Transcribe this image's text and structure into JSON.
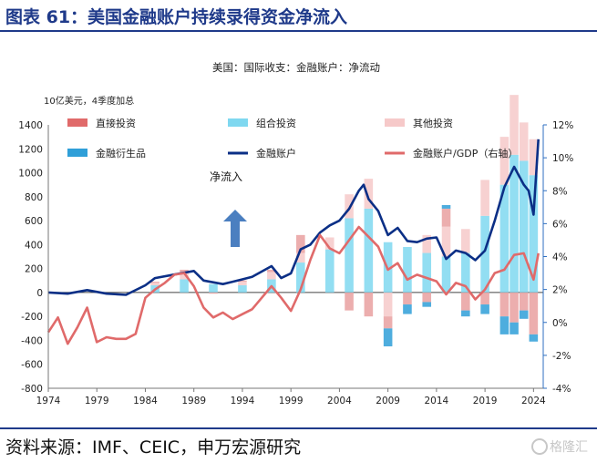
{
  "figure": {
    "title": "图表 61：美国金融账户持续录得资金净流入",
    "source": "资料来源：IMF、CEIC，申万宏源研究",
    "watermark": "格隆汇"
  },
  "chart_data": {
    "type": "bar",
    "title": "美国：国际收支：金融账户：净流动",
    "units_label": "10亿美元，4季度加总",
    "annotation": "净流入",
    "annotation_icon": "up-arrow-icon",
    "x_ticks": [
      "1974",
      "1979",
      "1984",
      "1989",
      "1994",
      "1999",
      "2004",
      "2009",
      "2014",
      "2019",
      "2024"
    ],
    "xlim": [
      1974,
      2025
    ],
    "ylim": [
      -800,
      1400
    ],
    "y2lim": [
      -4,
      12
    ],
    "y_ticks": [
      "-800",
      "-600",
      "-400",
      "-200",
      "0",
      "200",
      "400",
      "600",
      "800",
      "1000",
      "1200",
      "1400"
    ],
    "y2_ticks": [
      "-4%",
      "-2%",
      "0%",
      "2%",
      "4%",
      "6%",
      "8%",
      "10%",
      "12%"
    ],
    "legend": [
      {
        "label": "直接投资",
        "color": "#e06a6a",
        "kind": "rect"
      },
      {
        "label": "组合投资",
        "color": "#7fd8f0",
        "kind": "rect"
      },
      {
        "label": "其他投资",
        "color": "#f6c9c9",
        "kind": "rect"
      },
      {
        "label": "金融衍生品",
        "color": "#2f9fd8",
        "kind": "rect"
      },
      {
        "label": "金融账户",
        "color": "#0b2f86",
        "kind": "line"
      },
      {
        "label": "金融账户/GDP（右轴）",
        "color": "#e06a6a",
        "kind": "line"
      }
    ],
    "colors": {
      "direct": "#e9a0a0",
      "portfolio": "#7fd8f0",
      "other": "#f6c9c9",
      "derivatives": "#2f9fd8",
      "account": "#0b2f86",
      "gdp": "#e06a6a",
      "axis_right": "#2f6fc0"
    },
    "bar_series": {
      "x": [
        1985,
        1988,
        1991,
        1994,
        1997,
        2000,
        2003,
        2005,
        2007,
        2009,
        2011,
        2013,
        2015,
        2017,
        2019,
        2021,
        2022,
        2023,
        2024
      ],
      "portfolio": [
        60,
        110,
        70,
        60,
        110,
        250,
        360,
        620,
        700,
        420,
        380,
        330,
        300,
        330,
        640,
        900,
        1150,
        1100,
        980
      ],
      "other": [
        20,
        60,
        0,
        30,
        60,
        80,
        100,
        200,
        250,
        -200,
        0,
        150,
        250,
        200,
        300,
        400,
        500,
        320,
        300
      ],
      "direct": [
        10,
        20,
        -10,
        10,
        20,
        150,
        0,
        -150,
        -200,
        -100,
        -100,
        -80,
        150,
        -150,
        -100,
        -200,
        -250,
        -150,
        -350
      ],
      "derivatives": [
        0,
        0,
        0,
        0,
        0,
        0,
        0,
        0,
        0,
        -150,
        -80,
        -40,
        30,
        -50,
        -80,
        -150,
        -100,
        -70,
        -60
      ]
    },
    "series": [
      {
        "name": "金融账户",
        "axis": "left",
        "x": [
          1974,
          1976,
          1978,
          1980,
          1982,
          1984,
          1985,
          1987,
          1989,
          1990,
          1992,
          1994,
          1995,
          1997,
          1998,
          1999,
          2000,
          2001,
          2002,
          2003,
          2004,
          2005,
          2006,
          2006.5,
          2007,
          2008,
          2009,
          2010,
          2011,
          2012,
          2013,
          2014,
          2015,
          2016,
          2017,
          2018,
          2019,
          2020,
          2021,
          2022,
          2023,
          2023.5,
          2024,
          2024.5
        ],
        "y": [
          0,
          -10,
          20,
          -10,
          -20,
          60,
          120,
          150,
          180,
          100,
          70,
          110,
          130,
          220,
          120,
          160,
          360,
          400,
          500,
          560,
          600,
          700,
          850,
          900,
          780,
          680,
          480,
          540,
          430,
          420,
          450,
          460,
          280,
          350,
          330,
          270,
          350,
          600,
          880,
          1050,
          900,
          850,
          650,
          1280
        ]
      },
      {
        "name": "金融账户/GDP（右轴）",
        "axis": "right",
        "x": [
          1974,
          1975,
          1976,
          1977,
          1978,
          1979,
          1980,
          1981,
          1982,
          1983,
          1984,
          1985,
          1986,
          1987,
          1988,
          1989,
          1990,
          1991,
          1992,
          1993,
          1994,
          1995,
          1996,
          1997,
          1998,
          1999,
          2000,
          2001,
          2002,
          2003,
          2004,
          2005,
          2006,
          2007,
          2008,
          2009,
          2010,
          2011,
          2012,
          2013,
          2014,
          2015,
          2016,
          2017,
          2018,
          2019,
          2020,
          2021,
          2022,
          2023,
          2024,
          2024.5
        ],
        "y": [
          -0.6,
          0.3,
          -1.3,
          -0.3,
          0.9,
          -1.2,
          -0.9,
          -1.0,
          -1.0,
          -0.7,
          1.5,
          2.0,
          2.4,
          2.9,
          3.0,
          2.2,
          0.9,
          0.3,
          0.6,
          0.2,
          0.5,
          0.8,
          1.5,
          2.2,
          1.5,
          0.7,
          2.0,
          3.8,
          5.3,
          4.5,
          4.2,
          5.0,
          5.8,
          5.2,
          4.6,
          3.2,
          3.6,
          2.6,
          2.9,
          2.7,
          2.5,
          1.7,
          2.4,
          2.2,
          1.4,
          2.0,
          3.0,
          3.2,
          4.1,
          4.2,
          2.6,
          4.2
        ]
      }
    ]
  }
}
